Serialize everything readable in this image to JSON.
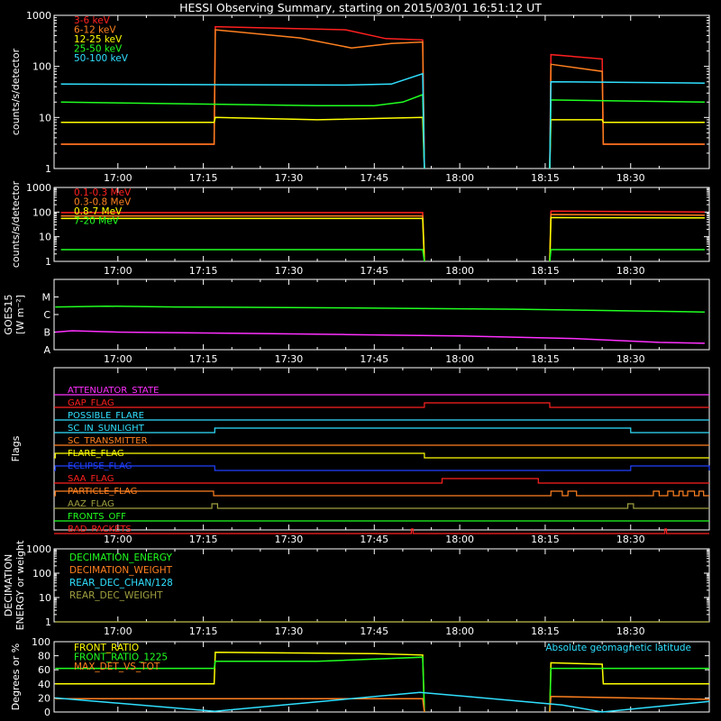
{
  "title": "HESSI Observing Summary, starting on 2015/03/01 16:51:12 UT",
  "colors": {
    "background": "#000000",
    "axis": "#ffffff",
    "red": "#ff2020",
    "orange": "#ff8020",
    "yellow": "#ffff00",
    "green": "#20ff20",
    "cyan": "#30e0ff",
    "magenta": "#ff30ff",
    "blue": "#2040ff",
    "olive": "#a0a040"
  },
  "chart_data": [
    {
      "id": "lo",
      "type": "line",
      "ylabel": "counts/s/detector",
      "yscale": "log",
      "ylim": [
        1,
        1000
      ],
      "yticks": [
        "1",
        "10",
        "100",
        "1000"
      ],
      "xlim_min": [
        -11.2,
        103.8
      ],
      "xticks": [
        "17:00",
        "17:15",
        "17:30",
        "17:45",
        "18:00",
        "18:15",
        "18:30"
      ],
      "series": [
        {
          "name": "3-6 keV",
          "color": "#ff2020",
          "segments": [
            [
              [
                -10,
                3
              ],
              [
                16.9,
                3
              ],
              [
                17.1,
                600
              ],
              [
                40,
                520
              ],
              [
                47,
                350
              ],
              [
                53.5,
                330
              ],
              [
                53.8,
                1
              ]
            ],
            [
              [
                75.8,
                1
              ],
              [
                76,
                170
              ],
              [
                85,
                140
              ],
              [
                85.2,
                3
              ],
              [
                103,
                3
              ]
            ]
          ]
        },
        {
          "name": "6-12 keV",
          "color": "#ff8020",
          "segments": [
            [
              [
                -10,
                3
              ],
              [
                16.9,
                3
              ],
              [
                17.1,
                520
              ],
              [
                32,
                360
              ],
              [
                41,
                230
              ],
              [
                48,
                280
              ],
              [
                53.5,
                300
              ],
              [
                53.8,
                1
              ]
            ],
            [
              [
                75.8,
                1
              ],
              [
                76,
                110
              ],
              [
                85,
                80
              ],
              [
                85.2,
                3
              ],
              [
                103,
                3
              ]
            ]
          ]
        },
        {
          "name": "12-25 keV",
          "color": "#ffff00",
          "segments": [
            [
              [
                -10,
                8
              ],
              [
                16.9,
                8
              ],
              [
                17.1,
                10
              ],
              [
                35,
                9
              ],
              [
                53.5,
                10
              ],
              [
                53.8,
                1
              ]
            ],
            [
              [
                75.8,
                1
              ],
              [
                76,
                9
              ],
              [
                85,
                9
              ],
              [
                85.2,
                8
              ],
              [
                103,
                8
              ]
            ]
          ]
        },
        {
          "name": "25-50 keV",
          "color": "#20ff20",
          "segments": [
            [
              [
                -10,
                20
              ],
              [
                35,
                17
              ],
              [
                45,
                17
              ],
              [
                50,
                20
              ],
              [
                53.5,
                28
              ],
              [
                53.8,
                1
              ]
            ],
            [
              [
                75.8,
                1
              ],
              [
                76,
                22
              ],
              [
                103,
                20
              ]
            ]
          ]
        },
        {
          "name": "50-100 keV",
          "color": "#30e0ff",
          "segments": [
            [
              [
                -10,
                45
              ],
              [
                40,
                43
              ],
              [
                48,
                45
              ],
              [
                53.5,
                72
              ],
              [
                53.8,
                1
              ]
            ],
            [
              [
                75.8,
                1
              ],
              [
                76,
                50
              ],
              [
                103,
                47
              ]
            ]
          ]
        }
      ]
    },
    {
      "id": "hi",
      "type": "line",
      "ylabel": "counts/s/detector",
      "yscale": "log",
      "ylim": [
        1,
        1000
      ],
      "yticks": [
        "1",
        "10",
        "100",
        "1000"
      ],
      "xlim_min": [
        -11.2,
        103.8
      ],
      "xticks": [
        "17:00",
        "17:15",
        "17:30",
        "17:45",
        "18:00",
        "18:15",
        "18:30"
      ],
      "series": [
        {
          "name": "0.1-0.3 MeV",
          "color": "#ff2020",
          "segments": [
            [
              [
                -10,
                95
              ],
              [
                53.5,
                95
              ],
              [
                53.8,
                1
              ]
            ],
            [
              [
                75.8,
                1
              ],
              [
                76,
                110
              ],
              [
                103,
                100
              ]
            ]
          ]
        },
        {
          "name": "0.3-0.8 MeV",
          "color": "#ff8020",
          "segments": [
            [
              [
                -10,
                70
              ],
              [
                53.5,
                70
              ],
              [
                53.8,
                1
              ]
            ],
            [
              [
                75.8,
                1
              ],
              [
                76,
                80
              ],
              [
                103,
                75
              ]
            ]
          ]
        },
        {
          "name": "0.8-7 MeV",
          "color": "#ffff00",
          "segments": [
            [
              [
                -10,
                55
              ],
              [
                53.5,
                55
              ],
              [
                53.8,
                1
              ]
            ],
            [
              [
                75.8,
                1
              ],
              [
                76,
                60
              ],
              [
                103,
                58
              ]
            ]
          ]
        },
        {
          "name": "7-20 MeV",
          "color": "#20ff20",
          "segments": [
            [
              [
                -10,
                3
              ],
              [
                53.5,
                3
              ],
              [
                53.8,
                1
              ]
            ],
            [
              [
                75.8,
                1
              ],
              [
                76,
                3
              ],
              [
                103,
                3
              ]
            ]
          ]
        }
      ]
    },
    {
      "id": "goes",
      "type": "line",
      "ylabel": "GOES15",
      "ylabel2": "[W m⁻²]",
      "yscale": "log",
      "ylim": [
        1e-08,
        0.0001
      ],
      "ycats": [
        "A",
        "B",
        "C",
        "M"
      ],
      "xlim_min": [
        -11.2,
        103.8
      ],
      "xticks": [
        "17:00",
        "17:15",
        "17:30",
        "17:45",
        "18:00",
        "18:15",
        "18:30"
      ],
      "series": [
        {
          "name": "",
          "color": "#20ff20",
          "segments": [
            [
              [
                -11,
                2.7e-06
              ],
              [
                -2,
                3e-06
              ],
              [
                10,
                2.7e-06
              ],
              [
                40,
                2.4e-06
              ],
              [
                70,
                2e-06
              ],
              [
                103,
                1.4e-06
              ]
            ]
          ]
        },
        {
          "name": "",
          "color": "#ff30ff",
          "segments": [
            [
              [
                -11,
                1e-07
              ],
              [
                -8,
                1.2e-07
              ],
              [
                0,
                1e-07
              ],
              [
                20,
                8.6e-08
              ],
              [
                40,
                7.3e-08
              ],
              [
                60,
                6e-08
              ],
              [
                80,
                4.3e-08
              ],
              [
                95,
                2.6e-08
              ],
              [
                103,
                2.3e-08
              ]
            ]
          ]
        }
      ]
    },
    {
      "id": "flags",
      "type": "line",
      "ylabel": "Flags",
      "xlim_min": [
        -11.2,
        103.8
      ],
      "xticks": [
        "17:00",
        "17:15",
        "17:30",
        "17:45",
        "18:00",
        "18:15",
        "18:30"
      ],
      "flags": [
        {
          "name": "ATTENUATOR_STATE",
          "color": "#ff30ff",
          "on": []
        },
        {
          "name": "GAP_FLAG",
          "color": "#ff2020",
          "on": [
            [
              53.8,
              75.8
            ]
          ]
        },
        {
          "name": "POSSIBLE_FLARE",
          "color": "#30e0ff",
          "on": []
        },
        {
          "name": "SC_IN_SUNLIGHT",
          "color": "#30e0ff",
          "on": [
            [
              17,
              90
            ]
          ]
        },
        {
          "name": "SC_TRANSMITTER",
          "color": "#ff8020",
          "on": []
        },
        {
          "name": "FLARE_FLAG",
          "color": "#ffff00",
          "on": [
            [
              -11,
              53.8
            ]
          ]
        },
        {
          "name": "ECLIPSE_FLAG",
          "color": "#2040ff",
          "on": [
            [
              -11,
              17
            ],
            [
              90,
              103.8
            ]
          ]
        },
        {
          "name": "SAA_FLAG",
          "color": "#ff2020",
          "on": [
            [
              56.9,
              73.8
            ]
          ]
        },
        {
          "name": "PARTICLE_FLAG",
          "color": "#ff8020",
          "on": [
            [
              -11,
              16.8
            ],
            [
              76,
              78
            ],
            [
              79,
              80.5
            ],
            [
              94,
              95
            ],
            [
              96.5,
              97.5
            ],
            [
              98.5,
              99.2
            ],
            [
              100,
              101.2
            ],
            [
              102,
              102.8
            ]
          ]
        },
        {
          "name": "AAZ_FLAG",
          "color": "#a0a040",
          "on": [
            [
              16.5,
              17.5
            ],
            [
              89.5,
              90.5
            ]
          ]
        },
        {
          "name": "FRONTS_OFF",
          "color": "#20ff20",
          "on": []
        },
        {
          "name": "BAD_PACKETS",
          "color": "#ff2020",
          "on": [
            [
              51.5,
              51.8
            ],
            [
              96,
              96.3
            ]
          ]
        }
      ]
    },
    {
      "id": "decim",
      "type": "line",
      "ylabel": "DECIMATION",
      "ylabel2": "ENERGY or weight",
      "yscale": "log",
      "ylim": [
        1,
        1000
      ],
      "yticks": [
        "1",
        "10",
        "100",
        "1000"
      ],
      "xlim_min": [
        -11.2,
        103.8
      ],
      "xticks": [
        "17:00",
        "17:15",
        "17:30",
        "17:45",
        "18:00",
        "18:15",
        "18:30"
      ],
      "series": [
        {
          "name": "DECIMATION_ENERGY",
          "color": "#20ff20",
          "segments": []
        },
        {
          "name": "DECIMATION_WEIGHT",
          "color": "#ff8020",
          "segments": []
        },
        {
          "name": "REAR_DEC_CHAN/128",
          "color": "#30e0ff",
          "segments": []
        },
        {
          "name": "REAR_DEC_WEIGHT",
          "color": "#a0a040",
          "segments": [
            [
              [
                -11,
                1
              ],
              [
                103.8,
                1
              ]
            ]
          ]
        }
      ]
    },
    {
      "id": "ratio",
      "type": "line",
      "ylabel": "Degrees or %",
      "ylim": [
        0,
        100
      ],
      "yticks": [
        "0",
        "20",
        "40",
        "60",
        "80",
        "100"
      ],
      "xlim_min": [
        -11.2,
        103.8
      ],
      "annotation": "Absolute geomagnetic latitude",
      "series": [
        {
          "name": "FRONT_RATIO",
          "color": "#ffff00",
          "segments": [
            [
              [
                -11,
                40
              ],
              [
                16.9,
                40
              ],
              [
                17.1,
                85
              ],
              [
                45,
                83
              ],
              [
                53.5,
                81
              ],
              [
                53.8,
                0
              ]
            ],
            [
              [
                75.8,
                0
              ],
              [
                76,
                70
              ],
              [
                85,
                68
              ],
              [
                85.2,
                40
              ],
              [
                103.8,
                40
              ]
            ]
          ]
        },
        {
          "name": "FRONT_RATIO_1225",
          "color": "#20ff20",
          "segments": [
            [
              [
                -11,
                62
              ],
              [
                16.9,
                62
              ],
              [
                17.1,
                72
              ],
              [
                35,
                72
              ],
              [
                53.5,
                78
              ],
              [
                53.8,
                0
              ]
            ],
            [
              [
                75.8,
                0
              ],
              [
                76,
                62
              ],
              [
                103.8,
                62
              ]
            ]
          ]
        },
        {
          "name": "MAX_DET_VS_TOT",
          "color": "#ff8020",
          "segments": [
            [
              [
                -11,
                19
              ],
              [
                53.5,
                19
              ],
              [
                53.8,
                0
              ]
            ],
            [
              [
                75.8,
                0
              ],
              [
                76,
                22
              ],
              [
                103.8,
                18
              ]
            ]
          ]
        },
        {
          "name": "",
          "color": "#30e0ff",
          "segments": [
            [
              [
                -11,
                20
              ],
              [
                17,
                1
              ],
              [
                53,
                28
              ],
              [
                78,
                10
              ],
              [
                85,
                0
              ],
              [
                103.8,
                15
              ]
            ]
          ]
        }
      ]
    }
  ]
}
